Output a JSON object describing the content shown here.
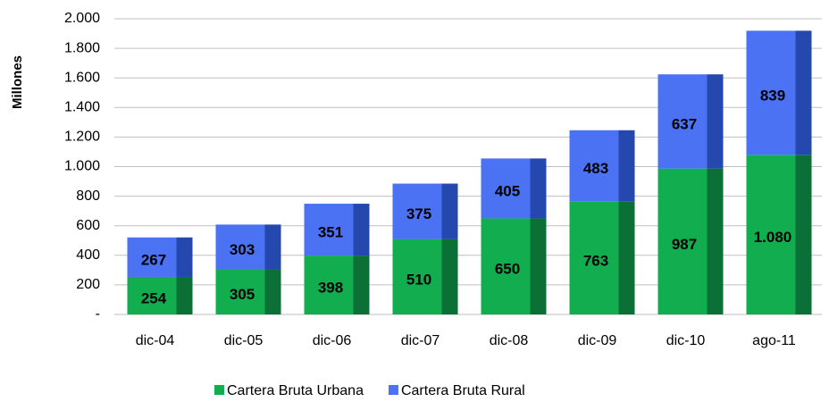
{
  "chart_data": {
    "type": "stacked-bar",
    "y_label": "Millones",
    "categories": [
      "dic-04",
      "dic-05",
      "dic-06",
      "dic-07",
      "dic-08",
      "dic-09",
      "dic-10",
      "ago-11"
    ],
    "series": [
      {
        "name": "Cartera Bruta Urbana",
        "color": "#12ad4f",
        "side_color": "#0a7036",
        "values": [
          254,
          305,
          398,
          510,
          650,
          763,
          987,
          1080
        ],
        "value_labels": [
          "254",
          "305",
          "398",
          "510",
          "650",
          "763",
          "987",
          "1.080"
        ]
      },
      {
        "name": "Cartera Bruta Rural",
        "color": "#4a72f3",
        "side_color": "#2448ae",
        "values": [
          267,
          303,
          351,
          375,
          405,
          483,
          637,
          839
        ]
      }
    ],
    "ylim": [
      0,
      2000
    ],
    "yticks": [
      {
        "value": 0,
        "label": "-"
      },
      200,
      400,
      600,
      800,
      {
        "value": 1000,
        "label": "1.000"
      },
      {
        "value": 1200,
        "label": "1.200"
      },
      {
        "value": 1400,
        "label": "1.400"
      },
      {
        "value": 1600,
        "label": "1.600"
      },
      {
        "value": 1800,
        "label": "1.800"
      },
      {
        "value": 2000,
        "label": "2.000"
      }
    ],
    "grid": true,
    "legend": "bottom"
  }
}
